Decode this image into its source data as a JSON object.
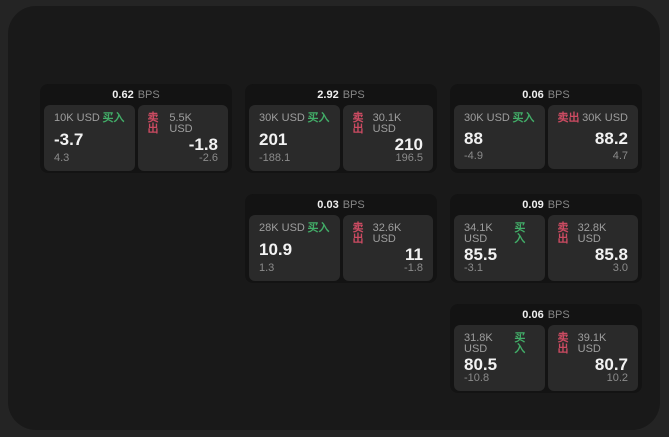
{
  "labels": {
    "bps_unit": "BPS",
    "buy": "买入",
    "sell": "卖出"
  },
  "colors": {
    "buy_green": "#42ad68",
    "sell_red": "#cc4b62",
    "screen_bg": "#191919",
    "card_bg": "#131313",
    "panel_bg": "#2a2a2a"
  },
  "cards": [
    {
      "bps": "0.62",
      "buy": {
        "amount": "10K USD",
        "price": "-3.7",
        "delta": "4.3"
      },
      "sell": {
        "amount": "5.5K USD",
        "price": "-1.8",
        "delta": "-2.6"
      }
    },
    {
      "bps": "2.92",
      "buy": {
        "amount": "30K USD",
        "price": "201",
        "delta": "-188.1"
      },
      "sell": {
        "amount": "30.1K USD",
        "price": "210",
        "delta": "196.5"
      }
    },
    {
      "bps": "0.06",
      "buy": {
        "amount": "30K USD",
        "price": "88",
        "delta": "-4.9"
      },
      "sell": {
        "amount": "30K USD",
        "price": "88.2",
        "delta": "4.7"
      }
    },
    {
      "bps": "0.03",
      "buy": {
        "amount": "28K USD",
        "price": "10.9",
        "delta": "1.3"
      },
      "sell": {
        "amount": "32.6K USD",
        "price": "11",
        "delta": "-1.8"
      }
    },
    {
      "bps": "0.09",
      "buy": {
        "amount": "34.1K USD",
        "price": "85.5",
        "delta": "-3.1"
      },
      "sell": {
        "amount": "32.8K USD",
        "price": "85.8",
        "delta": "3.0"
      }
    },
    {
      "bps": "0.06",
      "buy": {
        "amount": "31.8K USD",
        "price": "80.5",
        "delta": "-10.8"
      },
      "sell": {
        "amount": "39.1K USD",
        "price": "80.7",
        "delta": "10.2"
      }
    }
  ]
}
